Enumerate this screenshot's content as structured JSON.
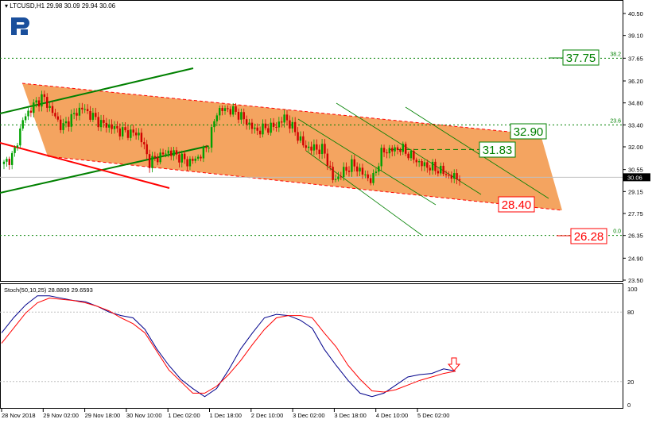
{
  "header": {
    "symbol": "LTCUSD,H1",
    "ohlc": "29.98 30.09 29.94 30.06"
  },
  "logo": {
    "text": "R",
    "color": "#1a4f9c"
  },
  "colors": {
    "bull": "#00a000",
    "bear": "#d00000",
    "channel": "#f4a460",
    "green": "#008000",
    "red": "#ff0000",
    "stoch_main": "#00008b",
    "stoch_signal": "#ff0000"
  },
  "chart_data": [
    {
      "type": "candlestick",
      "ylim": [
        23.5,
        40.5
      ],
      "y_ticks": [
        "40.50",
        "39.10",
        "37.65",
        "36.20",
        "34.80",
        "33.40",
        "32.00",
        "30.55",
        "29.15",
        "27.75",
        "26.35",
        "24.90",
        "23.50"
      ],
      "current_price": "30.06",
      "x_ticks": [
        "28 Nov 2018",
        "29 Nov 02:00",
        "29 Nov 18:00",
        "30 Nov 10:00",
        "1 Dec 02:00",
        "1 Dec 18:00",
        "2 Dec 10:00",
        "3 Dec 02:00",
        "3 Dec 18:00",
        "4 Dec 10:00",
        "5 Dec 02:00"
      ],
      "closes": [
        30.9,
        31.5,
        33.8,
        34.6,
        35.2,
        34.2,
        33.2,
        33.9,
        34.5,
        34.0,
        33.5,
        33.3,
        33.0,
        32.9,
        32.8,
        31.0,
        31.4,
        31.7,
        31.4,
        31.0,
        31.3,
        32.0,
        34.3,
        34.4,
        34.2,
        33.6,
        33.0,
        33.2,
        33.3,
        33.9,
        33.0,
        32.0,
        31.9,
        31.8,
        29.8,
        30.4,
        30.9,
        30.3,
        29.8,
        31.7,
        31.8,
        31.9,
        31.4,
        30.9,
        30.7,
        30.5,
        30.1,
        30.06
      ],
      "fib_levels": [
        {
          "label": "38.2",
          "price": 37.65
        },
        {
          "label": "23.6",
          "price": 33.4
        },
        {
          "label": "0.0",
          "price": 26.35
        }
      ],
      "annotations": {
        "top": "37.75",
        "upper_channel": "32.90",
        "mid": "31.83",
        "lower_channel": "28.40",
        "bottom": "26.28"
      }
    },
    {
      "type": "line",
      "title": "Stoch(50,10,25) 28.8809 29.6593",
      "ylim": [
        0,
        100
      ],
      "y_ticks": [
        "100",
        "80",
        "20",
        "0"
      ],
      "levels": [
        80,
        20
      ],
      "series": [
        {
          "values": [
            62,
            75,
            86,
            94,
            94,
            92,
            90,
            89,
            85,
            80,
            77,
            75,
            65,
            48,
            34,
            22,
            14,
            7,
            14,
            30,
            48,
            62,
            75,
            78,
            77,
            73,
            66,
            48,
            34,
            21,
            10,
            7,
            10,
            17,
            24,
            26,
            27,
            31,
            29
          ]
        },
        {
          "values": [
            53,
            66,
            79,
            88,
            92,
            91,
            90,
            88,
            85,
            81,
            75,
            70,
            62,
            46,
            30,
            20,
            10,
            10,
            16,
            26,
            38,
            52,
            65,
            75,
            77,
            77,
            75,
            62,
            50,
            34,
            22,
            12,
            11,
            13,
            17,
            21,
            24,
            27,
            29
          ]
        }
      ],
      "signal_arrow": "down"
    }
  ]
}
